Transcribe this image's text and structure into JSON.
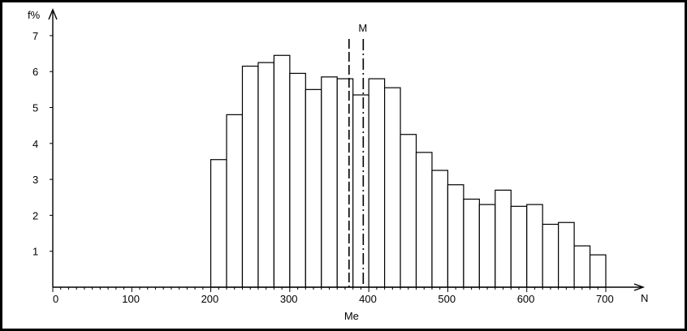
{
  "chart_data": {
    "type": "bar",
    "xlabel": "N",
    "ylabel": "f%",
    "xlim": [
      0,
      700
    ],
    "ylim": [
      0,
      7
    ],
    "x_ticks": [
      0,
      100,
      200,
      300,
      400,
      500,
      600,
      700
    ],
    "y_ticks": [
      1,
      2,
      3,
      4,
      5,
      6,
      7
    ],
    "grid": false,
    "bin_width": 20,
    "bins": [
      {
        "start": 200,
        "value": 3.55
      },
      {
        "start": 220,
        "value": 4.8
      },
      {
        "start": 240,
        "value": 6.15
      },
      {
        "start": 260,
        "value": 6.25
      },
      {
        "start": 280,
        "value": 6.45
      },
      {
        "start": 300,
        "value": 5.95
      },
      {
        "start": 320,
        "value": 5.5
      },
      {
        "start": 340,
        "value": 5.85
      },
      {
        "start": 360,
        "value": 5.8
      },
      {
        "start": 380,
        "value": 5.35
      },
      {
        "start": 400,
        "value": 5.8
      },
      {
        "start": 420,
        "value": 5.55
      },
      {
        "start": 440,
        "value": 4.25
      },
      {
        "start": 460,
        "value": 3.75
      },
      {
        "start": 480,
        "value": 3.25
      },
      {
        "start": 500,
        "value": 2.85
      },
      {
        "start": 520,
        "value": 2.45
      },
      {
        "start": 540,
        "value": 2.3
      },
      {
        "start": 560,
        "value": 2.7
      },
      {
        "start": 580,
        "value": 2.25
      },
      {
        "start": 600,
        "value": 2.3
      },
      {
        "start": 620,
        "value": 1.75
      },
      {
        "start": 640,
        "value": 1.8
      },
      {
        "start": 660,
        "value": 1.15
      },
      {
        "start": 680,
        "value": 0.9
      }
    ],
    "markers": [
      {
        "label": "Me",
        "x": 375,
        "style": "dashed",
        "label_position": "bottom"
      },
      {
        "label": "M",
        "x": 393,
        "style": "dash-dot",
        "label_position": "top"
      }
    ]
  }
}
